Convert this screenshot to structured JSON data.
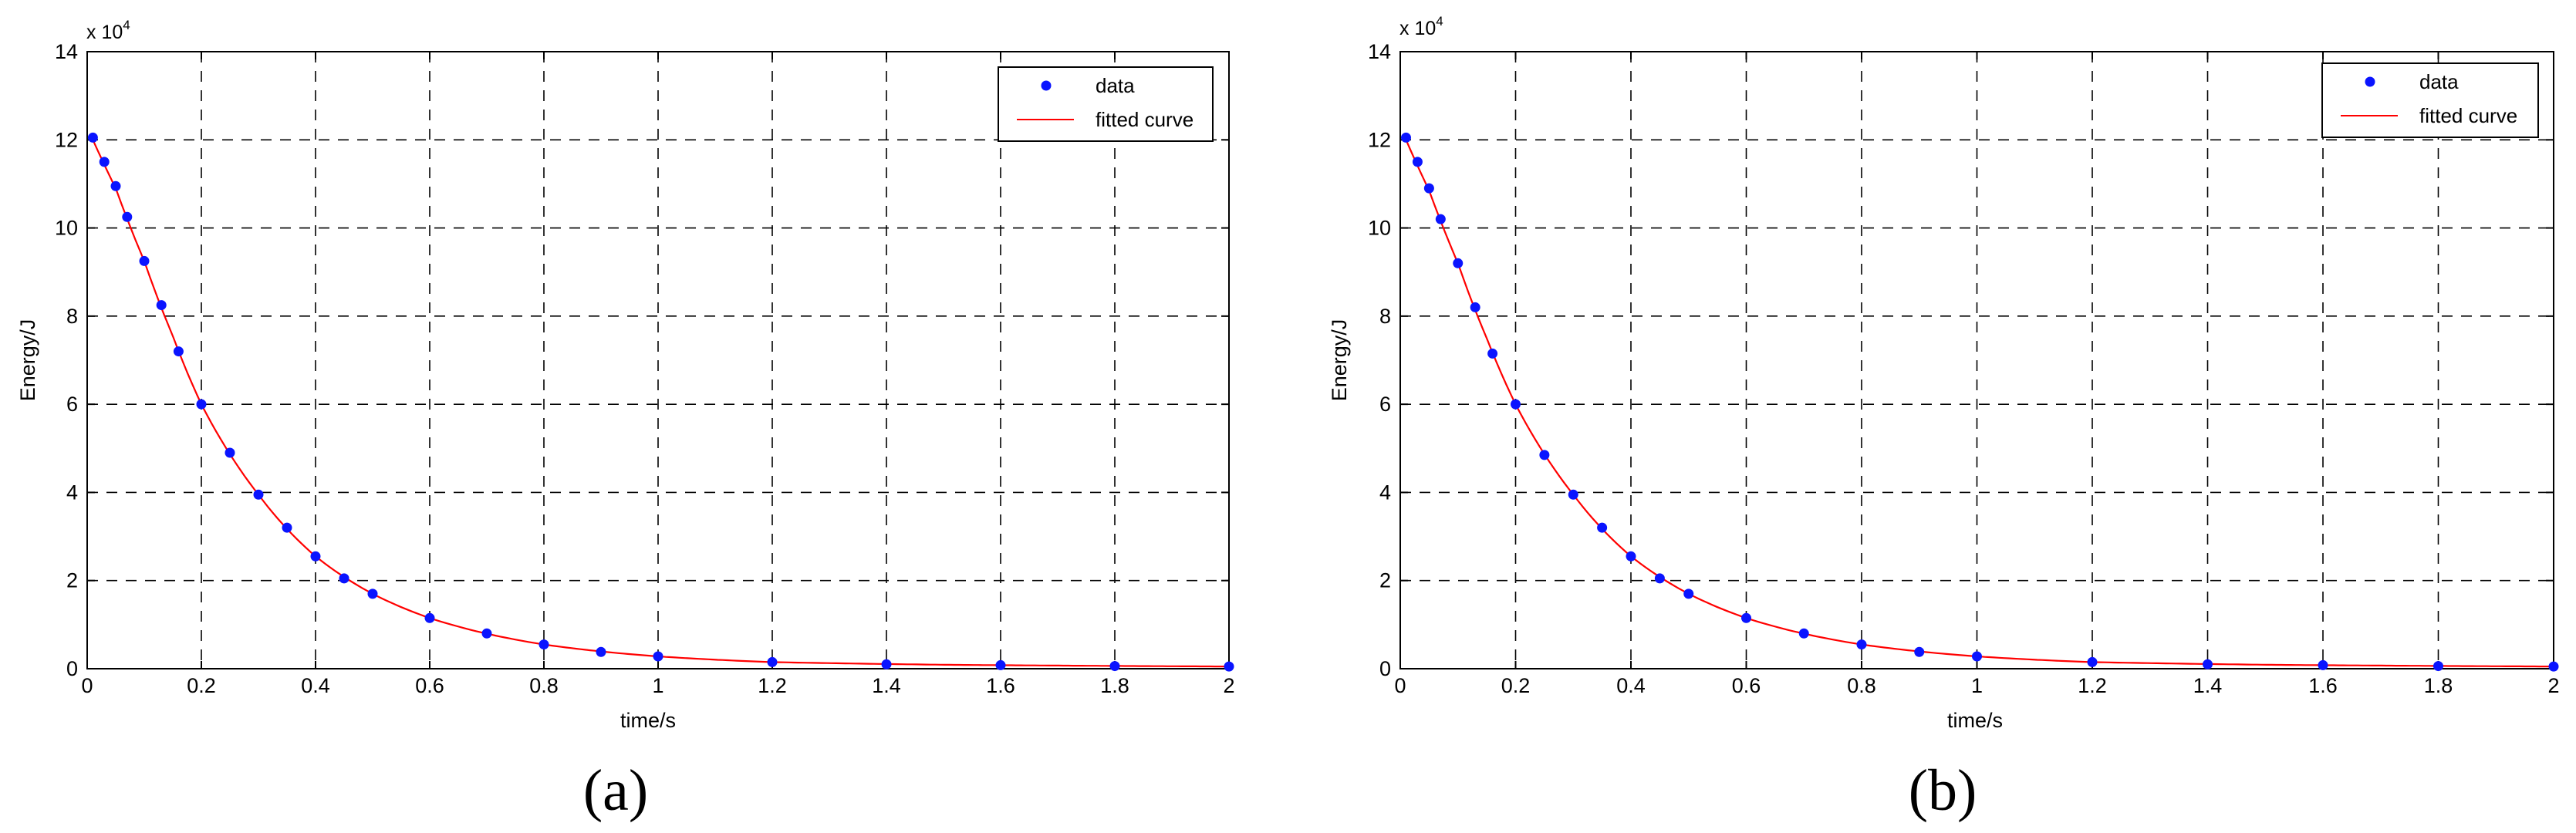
{
  "colors": {
    "data_marker": "#0a14ff",
    "fitted_curve": "#ff0000",
    "grid": "#000000",
    "axes": "#000000"
  },
  "chart_data": [
    {
      "type": "scatter",
      "panel_label": "(a)",
      "xlabel": "time/s",
      "ylabel": "Energy/J",
      "y_multiplier": {
        "base": "x 10",
        "exponent": "4"
      },
      "xlim": [
        0,
        2
      ],
      "ylim": [
        0,
        14
      ],
      "x_ticks": [
        "0",
        "0.2",
        "0.4",
        "0.6",
        "0.8",
        "1",
        "1.2",
        "1.4",
        "1.6",
        "1.8",
        "2"
      ],
      "y_ticks": [
        "0",
        "2",
        "4",
        "6",
        "8",
        "10",
        "12",
        "14"
      ],
      "grid": true,
      "legend": {
        "position": "top-right",
        "entries": [
          "data",
          "fitted curve"
        ]
      },
      "series": [
        {
          "name": "data",
          "kind": "markers",
          "color": "#0a14ff",
          "x": [
            0.01,
            0.03,
            0.05,
            0.07,
            0.1,
            0.13,
            0.16,
            0.2,
            0.25,
            0.3,
            0.35,
            0.4,
            0.45,
            0.5,
            0.6,
            0.7,
            0.8,
            0.9,
            1.0,
            1.2,
            1.4,
            1.6,
            1.8,
            2.0
          ],
          "y": [
            12.05,
            11.5,
            10.95,
            10.25,
            9.25,
            8.25,
            7.2,
            6.0,
            4.9,
            3.95,
            3.2,
            2.55,
            2.05,
            1.7,
            1.15,
            0.8,
            0.55,
            0.38,
            0.28,
            0.15,
            0.1,
            0.08,
            0.06,
            0.05
          ]
        },
        {
          "name": "fitted curve",
          "kind": "line",
          "color": "#ff0000",
          "x": [
            0.01,
            0.05,
            0.1,
            0.15,
            0.2,
            0.3,
            0.4,
            0.5,
            0.6,
            0.8,
            1.0,
            1.2,
            1.5,
            2.0
          ],
          "y": [
            12.0,
            10.9,
            9.25,
            7.55,
            6.0,
            3.95,
            2.55,
            1.7,
            1.15,
            0.55,
            0.28,
            0.15,
            0.09,
            0.05
          ]
        }
      ]
    },
    {
      "type": "scatter",
      "panel_label": "(b)",
      "xlabel": "time/s",
      "ylabel": "Energy/J",
      "y_multiplier": {
        "base": "x 10",
        "exponent": "4"
      },
      "xlim": [
        0,
        2
      ],
      "ylim": [
        0,
        14
      ],
      "x_ticks": [
        "0",
        "0.2",
        "0.4",
        "0.6",
        "0.8",
        "1",
        "1.2",
        "1.4",
        "1.6",
        "1.8",
        "2"
      ],
      "y_ticks": [
        "0",
        "2",
        "4",
        "6",
        "8",
        "10",
        "12",
        "14"
      ],
      "grid": true,
      "legend": {
        "position": "top-right",
        "entries": [
          "data",
          "fitted curve"
        ]
      },
      "series": [
        {
          "name": "data",
          "kind": "markers",
          "color": "#0a14ff",
          "x": [
            0.01,
            0.03,
            0.05,
            0.07,
            0.1,
            0.13,
            0.16,
            0.2,
            0.25,
            0.3,
            0.35,
            0.4,
            0.45,
            0.5,
            0.6,
            0.7,
            0.8,
            0.9,
            1.0,
            1.2,
            1.4,
            1.6,
            1.8,
            2.0
          ],
          "y": [
            12.05,
            11.5,
            10.9,
            10.2,
            9.2,
            8.2,
            7.15,
            6.0,
            4.85,
            3.95,
            3.2,
            2.55,
            2.05,
            1.7,
            1.15,
            0.8,
            0.55,
            0.38,
            0.28,
            0.15,
            0.1,
            0.08,
            0.06,
            0.05
          ]
        },
        {
          "name": "fitted curve",
          "kind": "line",
          "color": "#ff0000",
          "x": [
            0.01,
            0.05,
            0.1,
            0.15,
            0.2,
            0.3,
            0.4,
            0.5,
            0.6,
            0.8,
            1.0,
            1.2,
            1.5,
            2.0
          ],
          "y": [
            12.0,
            10.85,
            9.2,
            7.5,
            6.0,
            3.95,
            2.55,
            1.7,
            1.15,
            0.55,
            0.28,
            0.15,
            0.09,
            0.05
          ]
        }
      ]
    }
  ]
}
